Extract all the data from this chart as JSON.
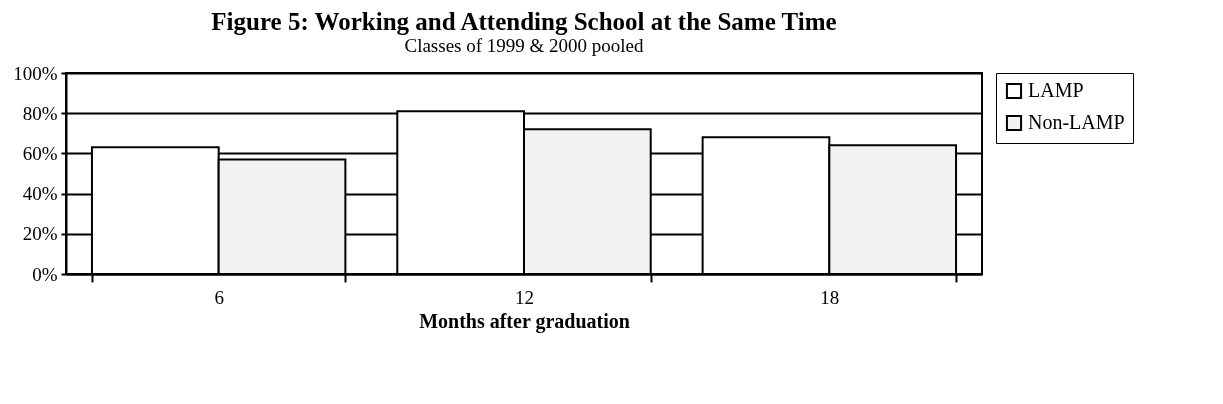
{
  "chart_data": {
    "type": "bar",
    "title": "Figure 5: Working and Attending School at the Same Time",
    "subtitle": "Classes of 1999 & 2000 pooled",
    "xlabel": "Months after graduation",
    "categories": [
      "6",
      "12",
      "18"
    ],
    "series": [
      {
        "name": "LAMP",
        "color": "#ffffff",
        "values": [
          63,
          81,
          68
        ]
      },
      {
        "name": "Non-LAMP",
        "color": "#f2f2f2",
        "values": [
          57,
          72,
          64
        ]
      }
    ],
    "ylim": [
      0,
      100
    ],
    "yticks": [
      {
        "value": 0,
        "label": "0%"
      },
      {
        "value": 20,
        "label": "20%"
      },
      {
        "value": 40,
        "label": "40%"
      },
      {
        "value": 60,
        "label": "60%"
      },
      {
        "value": 80,
        "label": "80%"
      },
      {
        "value": 100,
        "label": "100%"
      }
    ],
    "grid": "y",
    "legend": "right"
  }
}
